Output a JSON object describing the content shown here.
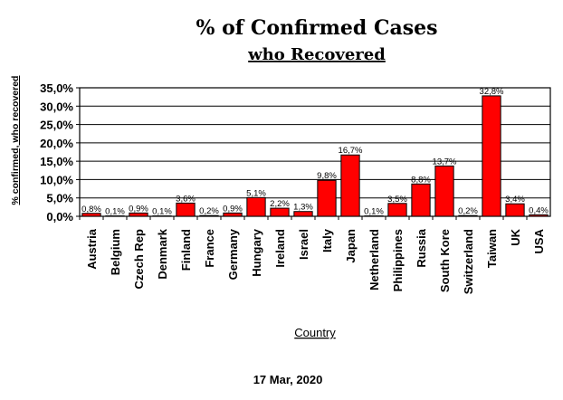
{
  "chart_data": {
    "type": "bar",
    "title": "% of Confirmed Cases",
    "subtitle": "who Recovered",
    "xlabel": "Country",
    "ylabel": "% confirmed, who recovered",
    "footer": "17 Mar, 2020",
    "ylim": [
      0,
      35
    ],
    "yticks": [
      "0,0%",
      "5,0%",
      "10,0%",
      "15,0%",
      "20,0%",
      "25,0%",
      "30,0%",
      "35,0%"
    ],
    "ytick_values": [
      0,
      5,
      10,
      15,
      20,
      25,
      30,
      35
    ],
    "grid": true,
    "bar_color": "#ff0000",
    "categories": [
      "Austria",
      "Belgium",
      "Czech Rep",
      "Denmark",
      "Finland",
      "France",
      "Germany",
      "Hungary",
      "Ireland",
      "Israel",
      "Italy",
      "Japan",
      "Netherland",
      "Philippines",
      "Russia",
      "South Kore",
      "Switzerland",
      "Taiwan",
      "UK",
      "USA"
    ],
    "values": [
      0.8,
      0.1,
      0.9,
      0.1,
      3.6,
      0.2,
      0.9,
      5.1,
      2.2,
      1.3,
      9.8,
      16.7,
      0.1,
      3.5,
      8.8,
      13.7,
      0.2,
      32.8,
      3.4,
      0.4
    ],
    "data_labels": [
      "0,8%",
      "0,1%",
      "0,9%",
      "0,1%",
      "3,6%",
      "0,2%",
      "0,9%",
      "5,1%",
      "2,2%",
      "1,3%",
      "9,8%",
      "16,7%",
      "0,1%",
      "3,5%",
      "8,8%",
      "13,7%",
      "0,2%",
      "32,8%",
      "3,4%",
      "0,4%"
    ]
  }
}
